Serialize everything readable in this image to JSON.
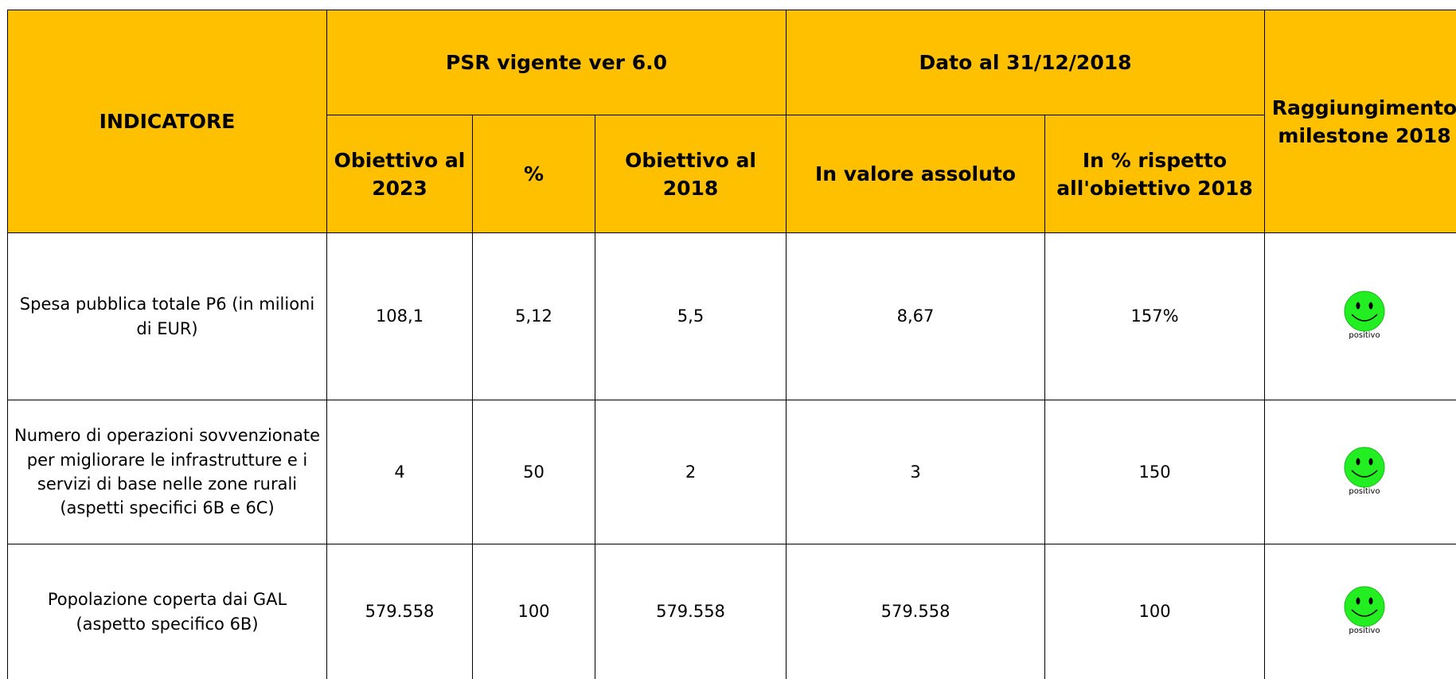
{
  "table": {
    "header": {
      "indicator": "INDICATORE",
      "group1": "PSR vigente ver 6.0",
      "group2": "Dato al 31/12/2018",
      "milestone": "Raggiungimento milestone 2018",
      "columns": [
        "Obiettivo al 2023",
        "%",
        "Obiettivo al 2018",
        "In valore assoluto",
        "In % rispetto all'obiettivo 2018"
      ]
    },
    "rows": [
      {
        "indicator": "Spesa pubblica totale P6 (in milioni di EUR)",
        "cells": [
          "108,1",
          "5,12",
          "5,5",
          "8,67",
          "157%"
        ],
        "status": "positivo"
      },
      {
        "indicator": "Numero di operazioni sovvenzionate per migliorare le infrastrutture e i servizi di base nelle zone rurali (aspetti specifici 6B e 6C)",
        "cells": [
          "4",
          "50",
          "2",
          "3",
          "150"
        ],
        "status": "positivo"
      },
      {
        "indicator": "Popolazione coperta dai GAL (aspetto specifico 6B)",
        "cells": [
          "579.558",
          "100",
          "579.558",
          "579.558",
          "100"
        ],
        "status": "positivo"
      }
    ]
  }
}
